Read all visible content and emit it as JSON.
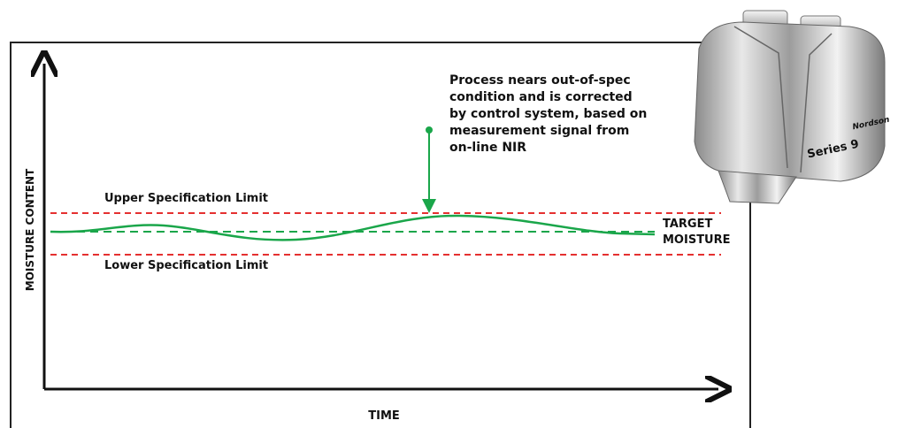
{
  "diagram": {
    "annotation": [
      "Process nears out-of-spec",
      "condition and is corrected",
      "by control system, based on",
      "measurement signal from",
      "on-line NIR"
    ],
    "upper_limit": "Upper Specification Limit",
    "lower_limit": "Lower Specification Limit",
    "target": [
      "TARGET",
      "MOISTURE"
    ],
    "y_axis_label": "MOISTURE CONTENT",
    "x_axis_label": "TIME",
    "device": {
      "model": "Series 9",
      "brand": "Nordson"
    }
  }
}
